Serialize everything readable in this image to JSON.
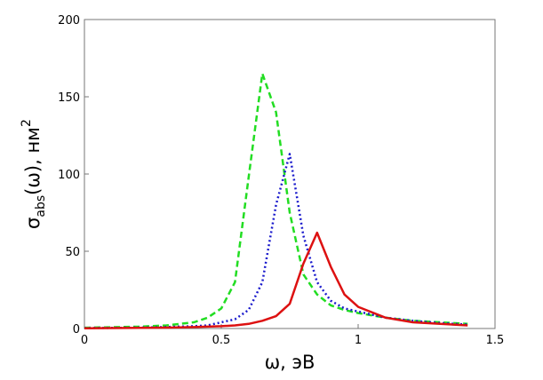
{
  "chart_data": {
    "type": "line",
    "x_label": "ω, эВ",
    "y_label": {
      "main": "σ",
      "sub": "abs",
      "rest": "(ω), нм",
      "sup": "2"
    },
    "x": [
      0,
      0.1,
      0.2,
      0.3,
      0.4,
      0.45,
      0.5,
      0.55,
      0.6,
      0.65,
      0.7,
      0.75,
      0.8,
      0.85,
      0.9,
      0.95,
      1.0,
      1.1,
      1.2,
      1.3,
      1.4
    ],
    "series": [
      {
        "color": "#22dd22",
        "dash": "dashed",
        "values": [
          0.5,
          0.8,
          1.2,
          2,
          4,
          7,
          13,
          30,
          98,
          165,
          140,
          75,
          35,
          22,
          15,
          12,
          10,
          7,
          5,
          4,
          3
        ]
      },
      {
        "color": "#1a1acc",
        "dash": "dotted",
        "values": [
          0.3,
          0.4,
          0.6,
          1,
          1.5,
          2,
          4,
          6,
          12,
          30,
          80,
          113,
          60,
          30,
          18,
          13,
          11,
          7,
          5,
          3.5,
          2.5
        ]
      },
      {
        "color": "#dd1111",
        "dash": "solid",
        "values": [
          0.2,
          0.3,
          0.4,
          0.6,
          0.9,
          1.2,
          1.5,
          2,
          3,
          5,
          8,
          16,
          42,
          62,
          40,
          22,
          14,
          7,
          4,
          3,
          2
        ]
      }
    ],
    "xlim": [
      0,
      1.5
    ],
    "xticks": [
      0,
      0.5,
      1,
      1.5
    ],
    "ylim": [
      0,
      200
    ],
    "yticks": [
      0,
      50,
      100,
      150,
      200
    ]
  }
}
